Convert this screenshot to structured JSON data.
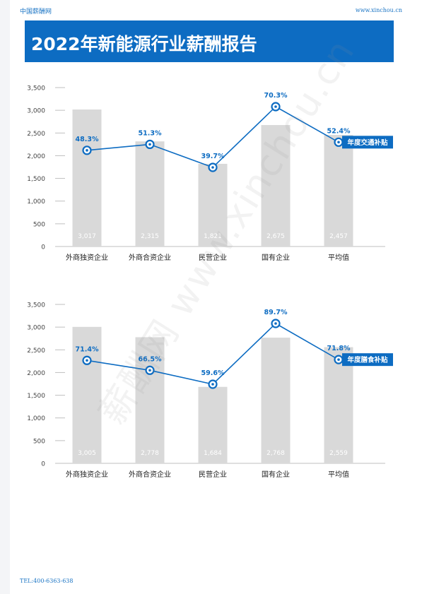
{
  "header": {
    "left_text": "中国薪酬网",
    "right_text": "www.xinchou.cn"
  },
  "title": "2022年新能源行业薪酬报告",
  "footer": {
    "tel": "TEL:400-6363-638"
  },
  "watermark": "薪酬网  www.xinchou.cn",
  "colors": {
    "accent": "#0d6cc2",
    "bar": "#d9d9d9",
    "line": "#0d6cc2",
    "text": "#333333"
  },
  "chart_data": [
    {
      "type": "bar",
      "categories": [
        "外商独资企业",
        "外商合资企业",
        "民营企业",
        "国有企业",
        "平均值"
      ],
      "values": [
        3017,
        2315,
        1821,
        2675,
        2457
      ],
      "value_labels": [
        "3,017",
        "2,315",
        "1,821",
        "2,675",
        "2,457"
      ],
      "yticks": [
        "0",
        "500",
        "1,000",
        "1,500",
        "2,000",
        "2,500",
        "3,000",
        "3,500"
      ],
      "ylim": [
        0,
        3500
      ],
      "line_series": {
        "name": "年度交通补贴",
        "values": [
          48.3,
          51.3,
          39.7,
          70.3,
          52.4
        ],
        "labels": [
          "48.3%",
          "51.3%",
          "39.7%",
          "70.3%",
          "52.4%"
        ]
      }
    },
    {
      "type": "bar",
      "categories": [
        "外商独资企业",
        "外商合资企业",
        "民营企业",
        "国有企业",
        "平均值"
      ],
      "values": [
        3005,
        2778,
        1684,
        2768,
        2559
      ],
      "value_labels": [
        "3,005",
        "2,778",
        "1,684",
        "2,768",
        "2,559"
      ],
      "yticks": [
        "0",
        "500",
        "1,000",
        "1,500",
        "2,000",
        "2,500",
        "3,000",
        "3,500"
      ],
      "ylim": [
        0,
        3500
      ],
      "line_series": {
        "name": "年度膳食补贴",
        "values": [
          71.4,
          66.5,
          59.6,
          89.7,
          71.8
        ],
        "labels": [
          "71.4%",
          "66.5%",
          "59.6%",
          "89.7%",
          "71.8%"
        ]
      }
    }
  ]
}
